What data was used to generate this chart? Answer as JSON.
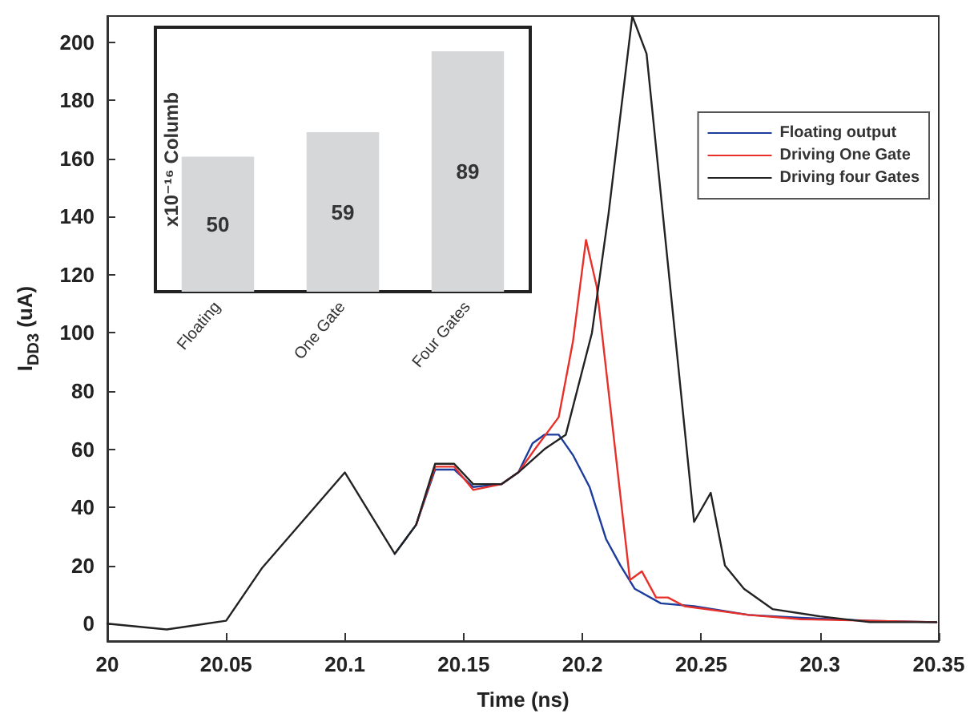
{
  "chart_data": [
    {
      "type": "line",
      "xlabel": "Time (ns)",
      "ylabel": "I$_{DD3}$ (uA)",
      "xlim": [
        20,
        20.35
      ],
      "ylim": [
        -6,
        209
      ],
      "xticks": [
        20,
        20.05,
        20.1,
        20.15,
        20.2,
        20.25,
        20.3,
        20.35
      ],
      "yticks": [
        0,
        20,
        40,
        60,
        80,
        100,
        120,
        140,
        160,
        180,
        200
      ],
      "grid": false,
      "legend": "top right",
      "marker": "none",
      "line_style": "solid",
      "series": [
        {
          "name": "Floating output",
          "color": "#1c3c9c",
          "x": [
            20.121,
            20.13,
            20.138,
            20.146,
            20.154,
            20.166,
            20.173,
            20.179,
            20.184,
            20.19,
            20.196,
            20.203,
            20.21,
            20.216,
            20.222,
            20.233,
            20.247,
            20.27,
            20.292,
            20.321,
            20.349
          ],
          "values": [
            24,
            34,
            53,
            53,
            47,
            48,
            52,
            62,
            65,
            65,
            58,
            47,
            29,
            20,
            12,
            7,
            6,
            3,
            2,
            1,
            0.5
          ]
        },
        {
          "name": "Driving One Gate",
          "color": "#e8302a",
          "x": [
            20.13,
            20.138,
            20.146,
            20.154,
            20.166,
            20.173,
            20.18,
            20.19,
            20.196,
            20.2015,
            20.206,
            20.22,
            20.225,
            20.231,
            20.236,
            20.243,
            20.27,
            20.292,
            20.321,
            20.349
          ],
          "values": [
            34,
            54,
            54,
            46,
            48,
            52,
            60,
            71,
            97,
            132,
            116,
            15,
            18,
            9,
            9,
            6,
            3,
            1.5,
            1,
            0.5
          ]
        },
        {
          "name": "Driving four Gates",
          "color": "#222222",
          "x": [
            20,
            20.025,
            20.05,
            20.065,
            20.1,
            20.121,
            20.13,
            20.138,
            20.146,
            20.154,
            20.166,
            20.173,
            20.184,
            20.193,
            20.204,
            20.211,
            20.221,
            20.227,
            20.247,
            20.254,
            20.26,
            20.268,
            20.28,
            20.3,
            20.321,
            20.349
          ],
          "values": [
            0,
            -2,
            1,
            19,
            52,
            24,
            34,
            55,
            55,
            48,
            48,
            52,
            60,
            65,
            100,
            141,
            209,
            196,
            35,
            45,
            20,
            12,
            5,
            2.5,
            0.5,
            0.5
          ]
        }
      ]
    },
    {
      "type": "bar",
      "ylabel": "x10⁻¹⁶ Columb",
      "categories": [
        "Floating",
        "One Gate",
        "Four Gates"
      ],
      "values": [
        50,
        59,
        89
      ],
      "color": "#d5d7d8",
      "data_labels": true
    }
  ]
}
